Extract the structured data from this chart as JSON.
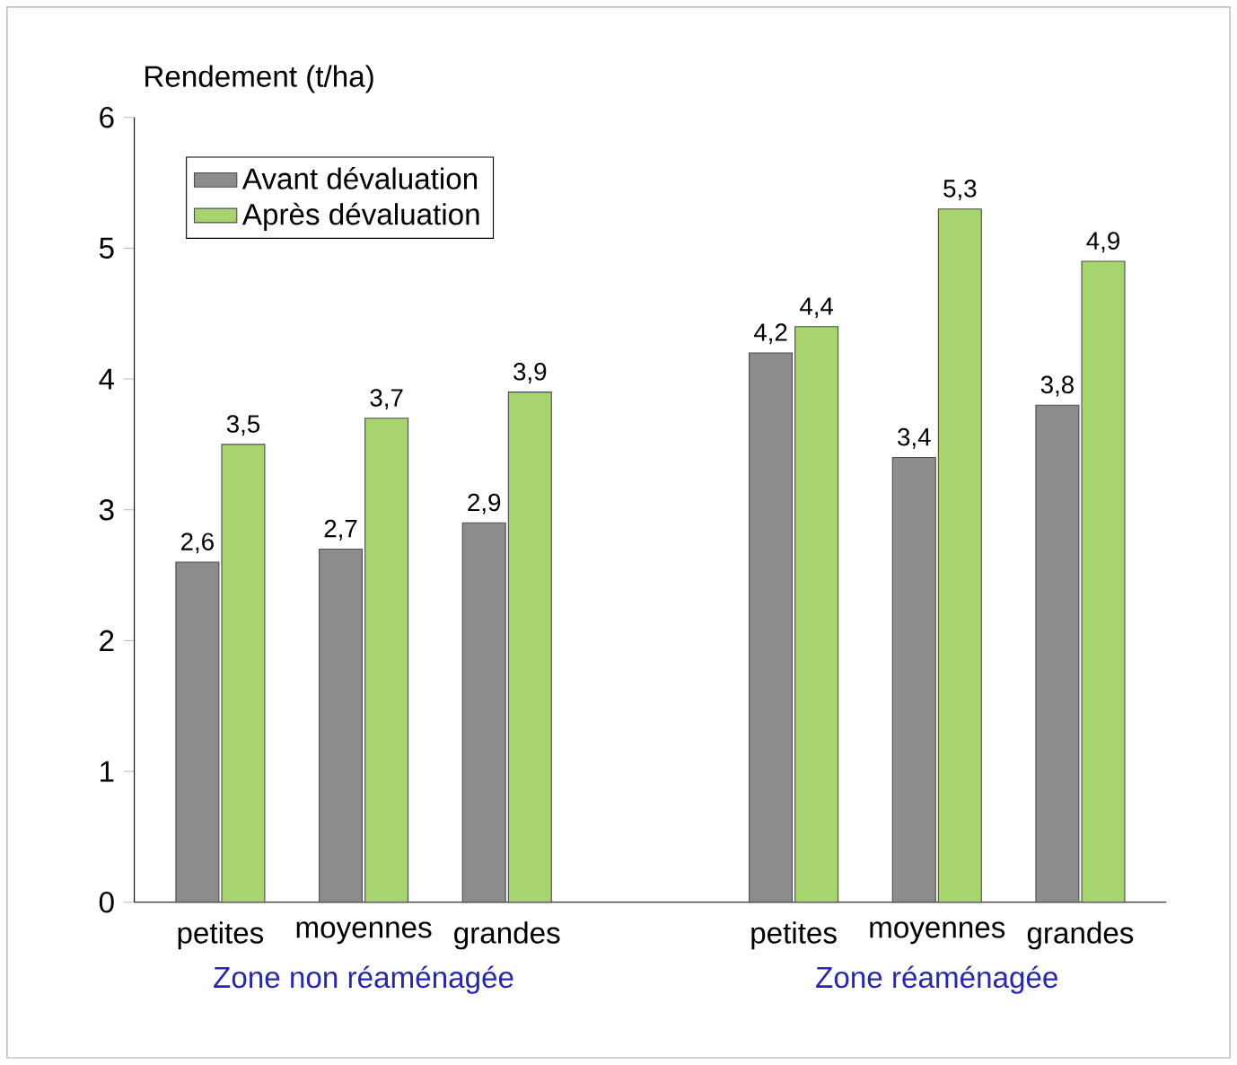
{
  "chart_data": {
    "type": "bar",
    "ylabel": "Rendement (t/ha)",
    "categories": [
      "petites",
      "moyennes",
      "grandes",
      null,
      "petites",
      "moyennes",
      "grandes"
    ],
    "series": [
      {
        "name": "Avant dévaluation",
        "color": "#8c8c8c",
        "values": [
          2.6,
          2.7,
          2.9,
          null,
          4.2,
          3.4,
          3.8
        ],
        "value_labels": [
          "2,6",
          "2,7",
          "2,9",
          null,
          "4,2",
          "3,4",
          "3,8"
        ]
      },
      {
        "name": "Après dévaluation",
        "color": "#a8d46f",
        "values": [
          3.5,
          3.7,
          3.9,
          null,
          4.4,
          5.3,
          4.9
        ],
        "value_labels": [
          "3,5",
          "3,7",
          "3,9",
          null,
          "4,4",
          "5,3",
          "4,9"
        ]
      }
    ],
    "annotations": [
      "Zone non réaménagée",
      "Zone réaménagée"
    ],
    "ylim": [
      0,
      6
    ],
    "yticks": [
      0,
      1,
      2,
      3,
      4,
      5,
      6
    ],
    "grid": false,
    "legend": "top left"
  }
}
